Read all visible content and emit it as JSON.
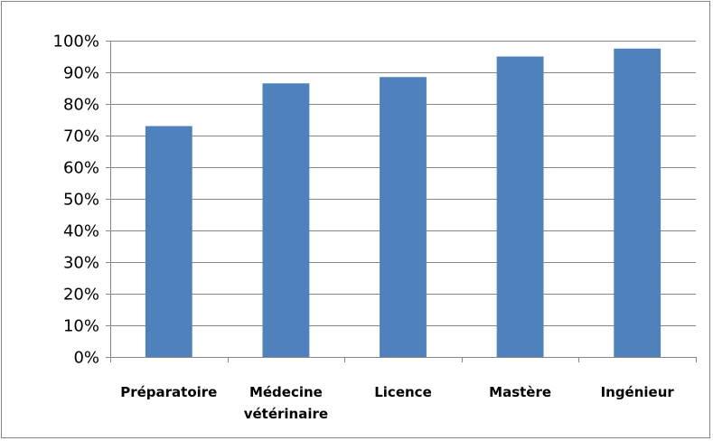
{
  "chart_data": {
    "type": "bar",
    "categories": [
      [
        "Préparatoire"
      ],
      [
        "Médecine",
        "vétérinaire"
      ],
      [
        "Licence"
      ],
      [
        "Mastère"
      ],
      [
        "Ingénieur"
      ]
    ],
    "values": [
      73,
      86.5,
      88.5,
      95,
      97.5
    ],
    "value_unit": "%",
    "ylim": [
      0,
      100
    ],
    "yticks": [
      "0%",
      "10%",
      "20%",
      "30%",
      "40%",
      "50%",
      "60%",
      "70%",
      "80%",
      "90%",
      "100%"
    ],
    "grid": true,
    "legend": "none",
    "bar_color": "#4F81BD",
    "grid_color": "#868686"
  }
}
